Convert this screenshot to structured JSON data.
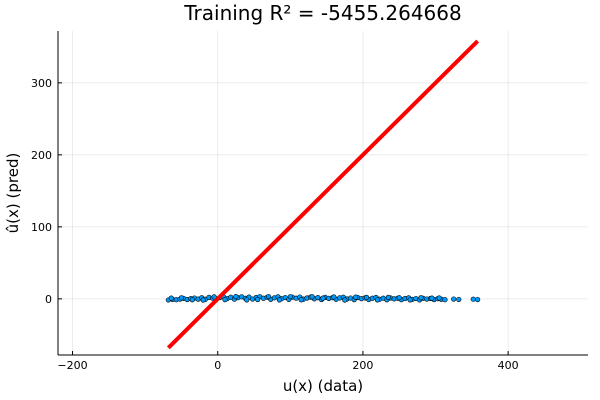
{
  "chart_data": {
    "type": "scatter",
    "title": "Training R² = -5455.264668",
    "xlabel": "u(x) (data)",
    "ylabel": "û(x) (pred)",
    "xlim": [
      -220,
      510
    ],
    "ylim": [
      -78,
      372
    ],
    "xticks": [
      -200,
      0,
      200,
      400
    ],
    "yticks": [
      0,
      100,
      200,
      300
    ],
    "grid": true,
    "legend": "none",
    "series": [
      {
        "kind": "scatter",
        "color": "#009af9",
        "points": [
          [
            -68,
            -1.5
          ],
          [
            -62,
            -0.8
          ],
          [
            -57,
            -1.2
          ],
          [
            -52,
            -0.5
          ],
          [
            -47,
            0.6
          ],
          [
            -42,
            -0.9
          ],
          [
            -37,
            0.3
          ],
          [
            -32,
            1.1
          ],
          [
            -27,
            -0.4
          ],
          [
            -22,
            1.5
          ],
          [
            -17,
            -0.6
          ],
          [
            -12,
            2.0
          ],
          [
            -7,
            0.9
          ],
          [
            -2,
            -0.2
          ],
          [
            3,
            1.8
          ],
          [
            8,
            2.6
          ],
          [
            13,
            0.4
          ],
          [
            18,
            2.2
          ],
          [
            23,
            -0.5
          ],
          [
            28,
            1.6
          ],
          [
            33,
            2.8
          ],
          [
            38,
            0.7
          ],
          [
            43,
            2.4
          ],
          [
            48,
            -0.3
          ],
          [
            53,
            1.9
          ],
          [
            58,
            3.0
          ],
          [
            63,
            0.8
          ],
          [
            68,
            2.1
          ],
          [
            73,
            -0.6
          ],
          [
            78,
            1.4
          ],
          [
            83,
            2.7
          ],
          [
            88,
            0.2
          ],
          [
            93,
            1.8
          ],
          [
            98,
            -0.8
          ],
          [
            103,
            2.3
          ],
          [
            108,
            0.9
          ],
          [
            113,
            2.5
          ],
          [
            118,
            -0.4
          ],
          [
            123,
            1.2
          ],
          [
            128,
            2.4
          ],
          [
            133,
            0.1
          ],
          [
            138,
            1.7
          ],
          [
            143,
            -0.9
          ],
          [
            148,
            2.0
          ],
          [
            153,
            0.6
          ],
          [
            158,
            1.6
          ],
          [
            163,
            -0.7
          ],
          [
            168,
            1.3
          ],
          [
            173,
            2.2
          ],
          [
            178,
            -0.2
          ],
          [
            183,
            1.1
          ],
          [
            188,
            -1.1
          ],
          [
            193,
            1.8
          ],
          [
            198,
            0.3
          ],
          [
            203,
            1.3
          ],
          [
            208,
            -0.9
          ],
          [
            213,
            0.8
          ],
          [
            218,
            1.9
          ],
          [
            223,
            -0.5
          ],
          [
            228,
            0.9
          ],
          [
            233,
            -1.3
          ],
          [
            238,
            1.2
          ],
          [
            243,
            0.0
          ],
          [
            248,
            0.8
          ],
          [
            253,
            -1.1
          ],
          [
            258,
            0.5
          ],
          [
            263,
            1.3
          ],
          [
            268,
            -0.7
          ],
          [
            273,
            0.4
          ],
          [
            278,
            -1.4
          ],
          [
            283,
            0.7
          ],
          [
            288,
            -0.3
          ],
          [
            293,
            0.5
          ],
          [
            298,
            -1.0
          ],
          [
            303,
            0.2
          ],
          [
            308,
            -0.6
          ],
          [
            313,
            -1.2
          ],
          [
            325,
            -0.3
          ],
          [
            332,
            -0.8
          ],
          [
            352,
            -0.5
          ],
          [
            358,
            -1.0
          ],
          [
            -64,
            1.0
          ],
          [
            -50,
            1.4
          ],
          [
            -35,
            -1.3
          ],
          [
            -20,
            -1.6
          ],
          [
            -5,
            2.8
          ],
          [
            10,
            -1.1
          ],
          [
            25,
            3.1
          ],
          [
            40,
            -1.5
          ],
          [
            55,
            -0.9
          ],
          [
            70,
            3.2
          ],
          [
            85,
            -1.4
          ],
          [
            100,
            3.0
          ],
          [
            115,
            -1.3
          ],
          [
            130,
            2.9
          ],
          [
            145,
            1.0
          ],
          [
            160,
            2.6
          ],
          [
            175,
            -1.6
          ],
          [
            190,
            2.4
          ],
          [
            205,
            2.1
          ],
          [
            220,
            -1.5
          ],
          [
            235,
            2.0
          ],
          [
            250,
            1.6
          ],
          [
            265,
            -1.5
          ],
          [
            280,
            1.5
          ],
          [
            295,
            1.0
          ],
          [
            305,
            1.2
          ]
        ]
      },
      {
        "kind": "line",
        "color": "#ff0000",
        "points": [
          [
            -68,
            -68
          ],
          [
            358,
            358
          ]
        ]
      }
    ]
  }
}
